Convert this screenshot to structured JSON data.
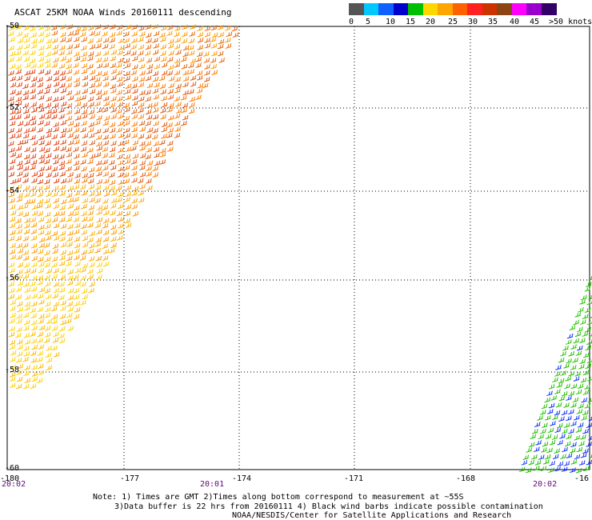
{
  "title": "ASCAT 25KM NOAA Winds 20160111 descending",
  "legend": {
    "colors": [
      "#555555",
      "#00c8ff",
      "#1060ff",
      "#0000cc",
      "#00c000",
      "#ffd700",
      "#ffa500",
      "#ff6000",
      "#ff2020",
      "#cc3300",
      "#8b4513",
      "#ff00ff",
      "#9900cc",
      "#330066"
    ],
    "labels": [
      "0",
      "5",
      "10",
      "15",
      "20",
      "25",
      "30",
      "35",
      "40",
      "45",
      ">50 knots"
    ]
  },
  "axes": {
    "x_ticks": [
      "-180",
      "-177",
      "-174",
      "-171",
      "-168",
      "-16"
    ],
    "y_ticks": [
      "-50",
      "-52",
      "-54",
      "-56",
      "-58",
      "-60"
    ]
  },
  "times": [
    "20:02",
    "20:01",
    "20:02"
  ],
  "notes": {
    "line1": "Note: 1) Times are GMT 2)Times along bottom correspond to measurement at ~55S",
    "line2": "3)Data buffer is 22 hrs from 20160111 4) Black wind barbs indicate possible contamination",
    "line3": "NOAA/NESDIS/Center for Satellite Applications and Research"
  }
}
